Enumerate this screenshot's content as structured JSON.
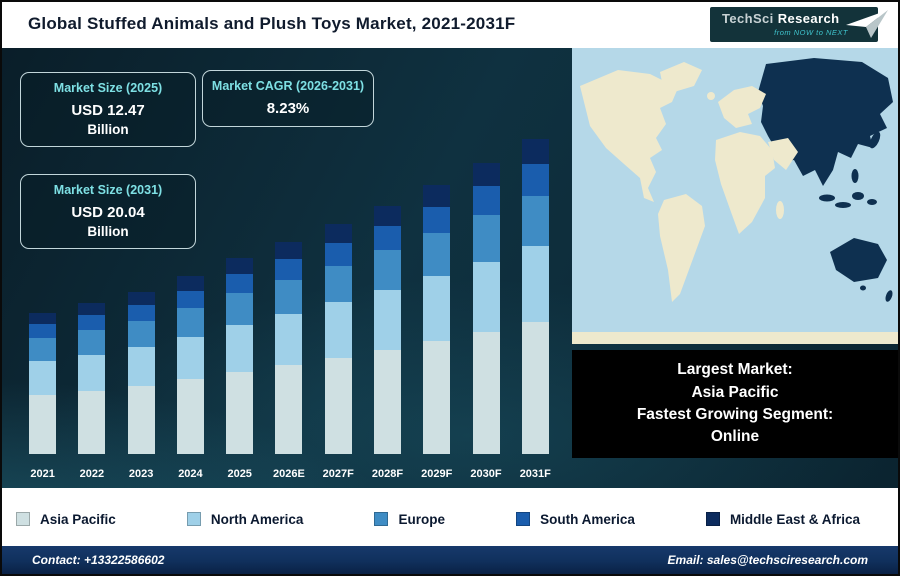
{
  "header": {
    "title": "Global Stuffed Animals and Plush Toys Market, 2021-2031F",
    "logo": {
      "brand_1": "TechSci",
      "brand_2": "Research",
      "tagline": "from NOW to NEXT"
    }
  },
  "info_boxes": [
    {
      "label": "Market Size (2025)",
      "value": "USD 12.47",
      "unit": "Billion"
    },
    {
      "label": "Market CAGR (2026-2031)",
      "value": "8.23%",
      "unit": ""
    },
    {
      "label": "Market Size (2031)",
      "value": "USD 20.04",
      "unit": "Billion"
    }
  ],
  "chart_data": {
    "type": "bar",
    "stacked": true,
    "unit": "USD Billion",
    "title": "Global Stuffed Animals and Plush Toys Market, 2021-2031F",
    "categories": [
      "2021",
      "2022",
      "2023",
      "2024",
      "2025",
      "2026E",
      "2027F",
      "2028F",
      "2029F",
      "2030F",
      "2031F"
    ],
    "series": [
      {
        "name": "Asia Pacific",
        "color": "#cfe0e2",
        "values": [
          3.78,
          4.03,
          4.33,
          4.75,
          5.24,
          5.67,
          6.14,
          6.64,
          7.19,
          7.78,
          8.42
        ]
      },
      {
        "name": "North America",
        "color": "#9fd0e8",
        "values": [
          2.16,
          2.3,
          2.47,
          2.71,
          2.99,
          3.24,
          3.51,
          3.79,
          4.11,
          4.44,
          4.81
        ]
      },
      {
        "name": "Europe",
        "color": "#3f8cc4",
        "values": [
          1.44,
          1.54,
          1.65,
          1.81,
          2.0,
          2.16,
          2.34,
          2.53,
          2.74,
          2.96,
          3.21
        ]
      },
      {
        "name": "South America",
        "color": "#1a5dad",
        "values": [
          0.9,
          0.96,
          1.03,
          1.13,
          1.25,
          1.35,
          1.46,
          1.58,
          1.71,
          1.85,
          2.0
        ]
      },
      {
        "name": "Middle East & Africa",
        "color": "#0c2b5e",
        "values": [
          0.72,
          0.77,
          0.82,
          0.9,
          0.99,
          1.08,
          1.16,
          1.27,
          1.36,
          1.49,
          1.6
        ]
      }
    ],
    "totals": [
      9.0,
      9.6,
      10.3,
      11.3,
      12.47,
      13.5,
      14.61,
      15.81,
      17.11,
      18.52,
      20.04
    ],
    "ylim": [
      0,
      21
    ],
    "grid": false,
    "legend_position": "bottom"
  },
  "map_panel": {
    "highlight_region": "Asia Pacific",
    "largest_label": "Largest Market:",
    "largest_value": "Asia Pacific",
    "fastest_label": "Fastest Growing Segment:",
    "fastest_value": "Online"
  },
  "footer": {
    "contact": "Contact: +13322586602",
    "email": "Email: sales@techsciresearch.com"
  },
  "colors": {
    "css_vars": {
      "map-ocean": "#b5d8e8",
      "map-land": "#eee9cd",
      "map-dark": "#0e3050",
      "accent-teal": "#7ee0e4",
      "title-color": "#101b2d"
    }
  }
}
